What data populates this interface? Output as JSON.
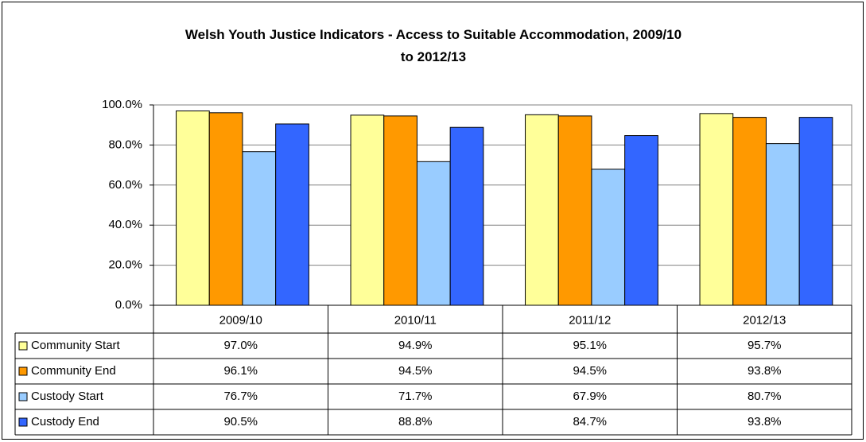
{
  "chart_data": {
    "type": "bar",
    "title": "Welsh Youth Justice Indicators - Access to Suitable Accommodation, 2009/10 to 2012/13",
    "categories": [
      "2009/10",
      "2010/11",
      "2011/12",
      "2012/13"
    ],
    "series": [
      {
        "name": "Community Start",
        "color": "#ffff99",
        "values": [
          97.0,
          94.9,
          95.1,
          95.7
        ],
        "value_labels": [
          "97.0%",
          "94.9%",
          "95.1%",
          "95.7%"
        ]
      },
      {
        "name": "Community End",
        "color": "#ff9900",
        "values": [
          96.1,
          94.5,
          94.5,
          93.8
        ],
        "value_labels": [
          "96.1%",
          "94.5%",
          "94.5%",
          "93.8%"
        ]
      },
      {
        "name": "Custody Start",
        "color": "#99ccff",
        "values": [
          76.7,
          71.7,
          67.9,
          80.7
        ],
        "value_labels": [
          "76.7%",
          "71.7%",
          "67.9%",
          "80.7%"
        ]
      },
      {
        "name": "Custody End",
        "color": "#3366ff",
        "values": [
          90.5,
          88.8,
          84.7,
          93.8
        ],
        "value_labels": [
          "90.5%",
          "88.8%",
          "84.7%",
          "93.8%"
        ]
      }
    ],
    "ylim": [
      0,
      100
    ],
    "yticks": [
      {
        "value": 0,
        "label": "0.0%"
      },
      {
        "value": 20,
        "label": "20.0%"
      },
      {
        "value": 40,
        "label": "40.0%"
      },
      {
        "value": 60,
        "label": "60.0%"
      },
      {
        "value": 80,
        "label": "80.0%"
      },
      {
        "value": 100,
        "label": "100.0%"
      }
    ],
    "grid": true
  }
}
